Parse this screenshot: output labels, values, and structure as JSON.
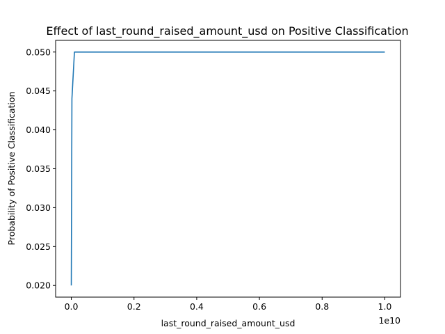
{
  "chart_data": {
    "type": "line",
    "title": "Effect of last_round_raised_amount_usd on Positive Classification",
    "xlabel": "last_round_raised_amount_usd",
    "ylabel": "Probability of Positive Classification",
    "x_offset_label": "1e10",
    "xlim": [
      -0.05,
      1.05
    ],
    "ylim": [
      0.0185,
      0.0515
    ],
    "x_ticks": [
      0.0,
      0.2,
      0.4,
      0.6,
      0.8,
      1.0
    ],
    "x_tick_labels": [
      "0.0",
      "0.2",
      "0.4",
      "0.6",
      "0.8",
      "1.0"
    ],
    "y_ticks": [
      0.02,
      0.025,
      0.03,
      0.035,
      0.04,
      0.045,
      0.05
    ],
    "y_tick_labels": [
      "0.020",
      "0.025",
      "0.030",
      "0.035",
      "0.040",
      "0.045",
      "0.050"
    ],
    "grid": false,
    "series": [
      {
        "color": "#1f77b4",
        "x": [
          0.0,
          0.002,
          0.01,
          0.02,
          1.0
        ],
        "y": [
          0.02,
          0.044,
          0.05,
          0.05,
          0.05
        ]
      }
    ]
  }
}
